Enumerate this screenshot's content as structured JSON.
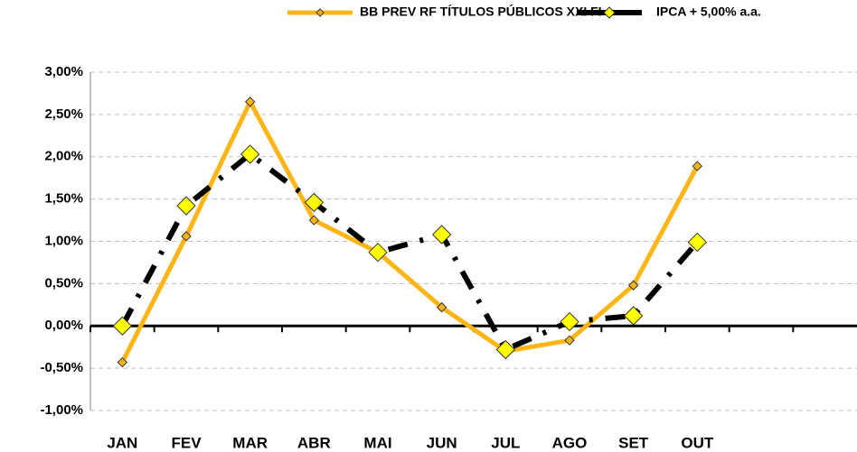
{
  "chart_data": {
    "type": "line",
    "categories": [
      "JAN",
      "FEV",
      "MAR",
      "ABR",
      "MAI",
      "JUN",
      "JUL",
      "AGO",
      "SET",
      "OUT",
      null,
      null
    ],
    "series": [
      {
        "name": "BB PREV RF TÍTULOS PÚBLICOS XXI FI",
        "color": "#FDB515",
        "marker_color": "#FDB515",
        "values": [
          -0.43,
          1.06,
          2.65,
          1.25,
          0.87,
          0.22,
          -0.3,
          -0.17,
          0.48,
          1.89,
          null,
          null
        ]
      },
      {
        "name": "IPCA + 5,00% a.a.",
        "color": "#000000",
        "marker_color": "#FFFF00",
        "values": [
          0.0,
          1.42,
          2.03,
          1.46,
          0.87,
          1.08,
          -0.28,
          0.05,
          0.12,
          0.99,
          null,
          null
        ]
      }
    ],
    "ylim": [
      -1.0,
      3.0
    ],
    "yticks": [
      {
        "value": -1.0,
        "label": "-1,00%"
      },
      {
        "value": -0.5,
        "label": "-0,50%"
      },
      {
        "value": 0.0,
        "label": "0,00%"
      },
      {
        "value": 0.5,
        "label": "0,50%"
      },
      {
        "value": 1.0,
        "label": "1,00%"
      },
      {
        "value": 1.5,
        "label": "1,50%"
      },
      {
        "value": 2.0,
        "label": "2,00%"
      },
      {
        "value": 2.5,
        "label": "2,50%"
      },
      {
        "value": 3.0,
        "label": "3,00%"
      }
    ],
    "grid": true,
    "legend": "top"
  }
}
